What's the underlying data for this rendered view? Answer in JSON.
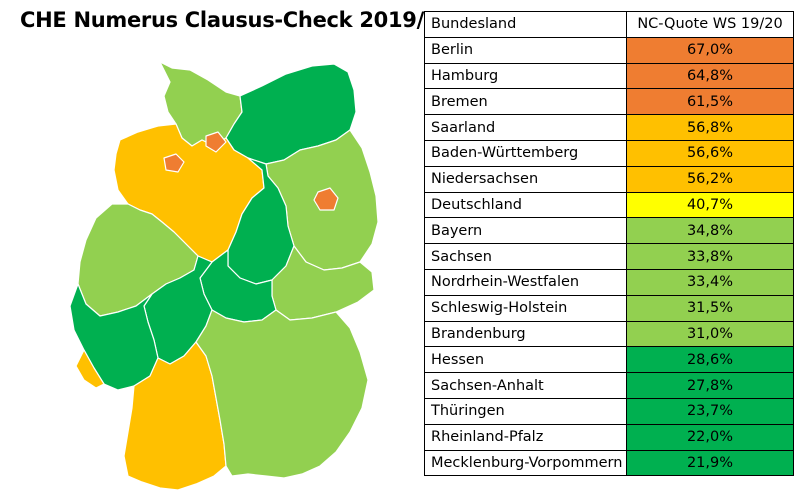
{
  "title": "CHE Numerus Clausus-Check 2019/20",
  "table": {
    "header_state": "Bundesland",
    "header_quota": "NC-Quote WS 19/20",
    "rows": [
      {
        "state": "Berlin",
        "quota": "67,0%",
        "color": "#ef7d31"
      },
      {
        "state": "Hamburg",
        "quota": "64,8%",
        "color": "#ef7d31"
      },
      {
        "state": "Bremen",
        "quota": "61,5%",
        "color": "#ef7d31"
      },
      {
        "state": "Saarland",
        "quota": "56,8%",
        "color": "#ffc000"
      },
      {
        "state": "Baden-Württemberg",
        "quota": "56,6%",
        "color": "#ffc000"
      },
      {
        "state": "Niedersachsen",
        "quota": "56,2%",
        "color": "#ffc000"
      },
      {
        "state": "Deutschland",
        "quota": "40,7%",
        "color": "#ffff00"
      },
      {
        "state": "Bayern",
        "quota": "34,8%",
        "color": "#92d050"
      },
      {
        "state": "Sachsen",
        "quota": "33,8%",
        "color": "#92d050"
      },
      {
        "state": "Nordrhein-Westfalen",
        "quota": "33,4%",
        "color": "#92d050"
      },
      {
        "state": "Schleswig-Holstein",
        "quota": "31,5%",
        "color": "#92d050"
      },
      {
        "state": "Brandenburg",
        "quota": "31,0%",
        "color": "#92d050"
      },
      {
        "state": "Hessen",
        "quota": "28,6%",
        "color": "#00b050"
      },
      {
        "state": "Sachsen-Anhalt",
        "quota": "27,8%",
        "color": "#00b050"
      },
      {
        "state": "Thüringen",
        "quota": "23,7%",
        "color": "#00b050"
      },
      {
        "state": "Rheinland-Pfalz",
        "quota": "22,0%",
        "color": "#00b050"
      },
      {
        "state": "Mecklenburg-Vorpommern",
        "quota": "21,9%",
        "color": "#00b050"
      }
    ]
  },
  "colors": {
    "above_60": "#ef7d31",
    "above_50": "#ffc000",
    "germany": "#ffff00",
    "above_30": "#92d050",
    "below_30": "#00b050"
  }
}
